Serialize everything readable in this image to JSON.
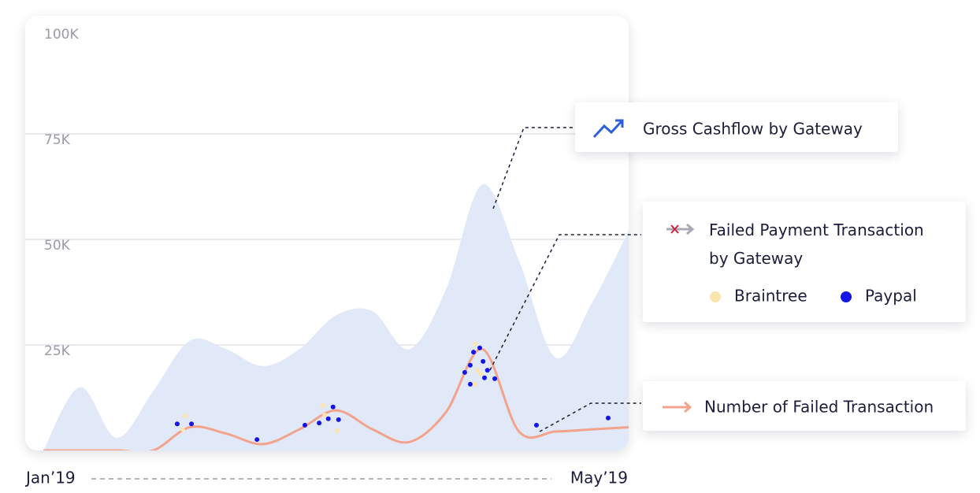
{
  "chart_data": {
    "type": "area",
    "categories": [
      "Jan’19",
      null,
      null,
      null,
      null,
      null,
      null,
      null,
      null,
      null,
      null,
      null,
      null,
      null,
      null,
      null,
      "May’19"
    ],
    "ylim": [
      0,
      100000
    ],
    "yticks": [
      {
        "value": 25000,
        "label": "25K"
      },
      {
        "value": 50000,
        "label": "50K"
      },
      {
        "value": 75000,
        "label": "75K"
      },
      {
        "value": 100000,
        "label": "100K"
      }
    ],
    "grid": true,
    "legend_group_title": "Failed Payment Transaction by Gateway",
    "series": [
      {
        "name": "Gross Cashflow by Gateway",
        "type": "area",
        "color": "#e1e8f7",
        "values": [
          0,
          15000,
          3000,
          14000,
          26000,
          24000,
          20000,
          24000,
          32000,
          33000,
          24000,
          38000,
          63000,
          45000,
          22000,
          35000,
          52000
        ]
      },
      {
        "name": "Number of Failed Transaction",
        "type": "line",
        "color": "#f3a38c",
        "values": [
          0,
          0,
          0,
          0,
          5500,
          4000,
          1500,
          5000,
          9500,
          5000,
          2000,
          9000,
          24000,
          4500,
          4500,
          5000,
          5500
        ]
      },
      {
        "name": "Braintree",
        "type": "scatter",
        "color": "#fbe4ad",
        "x": [
          3.88,
          3.81,
          7.64,
          7.69,
          8.03,
          11.8,
          11.86,
          11.8,
          11.95
        ],
        "values": [
          8200,
          5000,
          10600,
          8400,
          4700,
          25200,
          19000,
          15700,
          18100
        ]
      },
      {
        "name": "Paypal",
        "type": "scatter",
        "color": "#1414e6",
        "x": [
          3.66,
          4.05,
          5.84,
          7.15,
          7.54,
          7.79,
          7.92,
          8.07,
          11.52,
          11.67,
          11.76,
          11.93,
          12.02,
          12.14,
          12.06,
          12.34,
          11.67,
          13.48,
          15.44
        ],
        "values": [
          6300,
          6300,
          2600,
          6000,
          6500,
          7500,
          10300,
          7300,
          18500,
          20200,
          23300,
          24300,
          21100,
          19000,
          17200,
          17000,
          15700,
          6000,
          7700
        ]
      }
    ]
  }
}
